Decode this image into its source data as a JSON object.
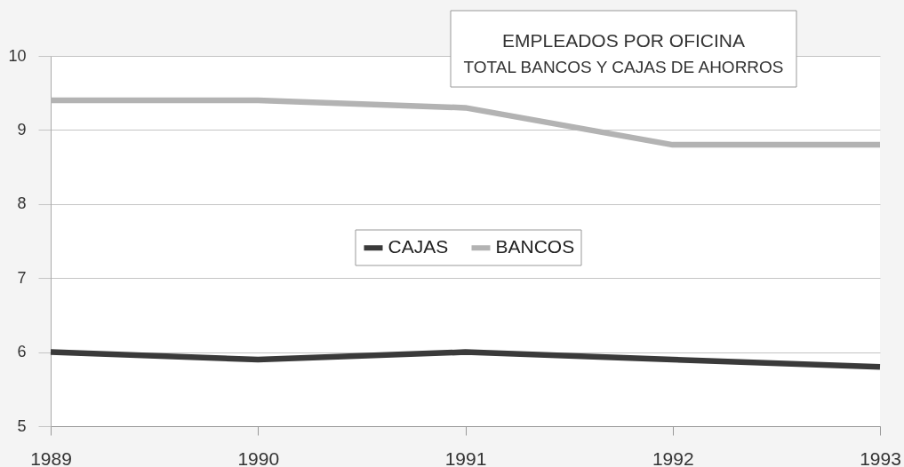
{
  "chart_data": {
    "type": "line",
    "title": "EMPLEADOS POR OFICINA",
    "subtitle": "TOTAL BANCOS Y CAJAS DE AHORROS",
    "x": [
      1989,
      1990,
      1991,
      1992,
      1993
    ],
    "series": [
      {
        "name": "CAJAS",
        "color": "#3a3a3a",
        "values": [
          6.0,
          5.9,
          6.0,
          5.9,
          5.8
        ]
      },
      {
        "name": "BANCOS",
        "color": "#b3b3b3",
        "values": [
          9.4,
          9.4,
          9.3,
          8.8,
          8.8
        ]
      }
    ],
    "xlim": [
      1989,
      1993
    ],
    "xticks": [
      1989,
      1990,
      1991,
      1992,
      1993
    ],
    "ylim": [
      5,
      10
    ],
    "yticks": [
      5,
      6,
      7,
      8,
      9,
      10
    ],
    "grid": "y",
    "legend": "center"
  }
}
